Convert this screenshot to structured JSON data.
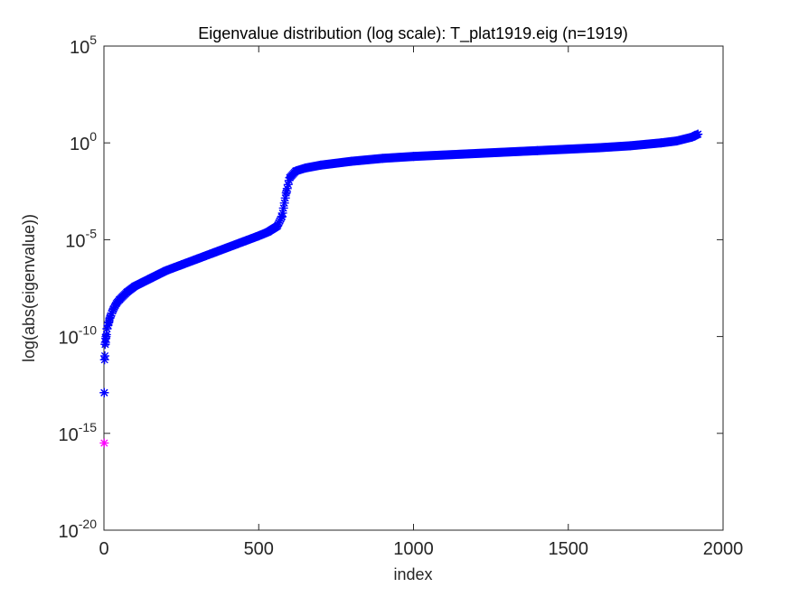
{
  "chart_data": {
    "type": "scatter",
    "title": "Eigenvalue distribution (log scale): T_plat1919.eig (n=1919)",
    "xlabel": "index",
    "ylabel": "log(abs(eigenvalue))",
    "xlim": [
      0,
      2000
    ],
    "ylim_exp": [
      -20,
      5
    ],
    "yscale": "log",
    "grid": false,
    "marker": "asterisk",
    "xticks": [
      {
        "label": "0",
        "value": 0
      },
      {
        "label": "500",
        "value": 500
      },
      {
        "label": "1000",
        "value": 1000
      },
      {
        "label": "1500",
        "value": 1500
      },
      {
        "label": "2000",
        "value": 2000
      }
    ],
    "yticks": [
      {
        "base": "10",
        "exp": "-20",
        "value": -20
      },
      {
        "base": "10",
        "exp": "-15",
        "value": -15
      },
      {
        "base": "10",
        "exp": "-10",
        "value": -10
      },
      {
        "base": "10",
        "exp": "-5",
        "value": -5
      },
      {
        "base": "10",
        "exp": "0",
        "value": 0
      },
      {
        "base": "10",
        "exp": "5",
        "value": 5
      }
    ],
    "series": [
      {
        "color": "#0000ff",
        "description": "absolute eigenvalues (positive)",
        "points_log10": [
          [
            1,
            -12.9
          ],
          [
            2,
            -11.2
          ],
          [
            3,
            -11.0
          ],
          [
            4,
            -10.4
          ],
          [
            5,
            -10.3
          ],
          [
            6,
            -10.1
          ],
          [
            8,
            -9.9
          ],
          [
            10,
            -9.6
          ],
          [
            15,
            -9.3
          ],
          [
            20,
            -9.0
          ],
          [
            30,
            -8.6
          ],
          [
            40,
            -8.3
          ],
          [
            50,
            -8.1
          ],
          [
            75,
            -7.7
          ],
          [
            100,
            -7.4
          ],
          [
            150,
            -7.0
          ],
          [
            200,
            -6.6
          ],
          [
            250,
            -6.3
          ],
          [
            300,
            -6.0
          ],
          [
            350,
            -5.7
          ],
          [
            400,
            -5.4
          ],
          [
            450,
            -5.1
          ],
          [
            500,
            -4.8
          ],
          [
            530,
            -4.6
          ],
          [
            560,
            -4.3
          ],
          [
            575,
            -3.8
          ],
          [
            590,
            -2.5
          ],
          [
            600,
            -1.8
          ],
          [
            620,
            -1.45
          ],
          [
            650,
            -1.3
          ],
          [
            700,
            -1.15
          ],
          [
            800,
            -0.95
          ],
          [
            900,
            -0.8
          ],
          [
            1000,
            -0.7
          ],
          [
            1200,
            -0.55
          ],
          [
            1400,
            -0.4
          ],
          [
            1600,
            -0.25
          ],
          [
            1700,
            -0.15
          ],
          [
            1800,
            -0.0
          ],
          [
            1850,
            0.1
          ],
          [
            1900,
            0.3
          ],
          [
            1919,
            0.45
          ]
        ]
      },
      {
        "color": "#ff00ff",
        "description": "absolute eigenvalues (negative)",
        "points_log10": [
          [
            1,
            -15.5
          ]
        ]
      }
    ]
  }
}
